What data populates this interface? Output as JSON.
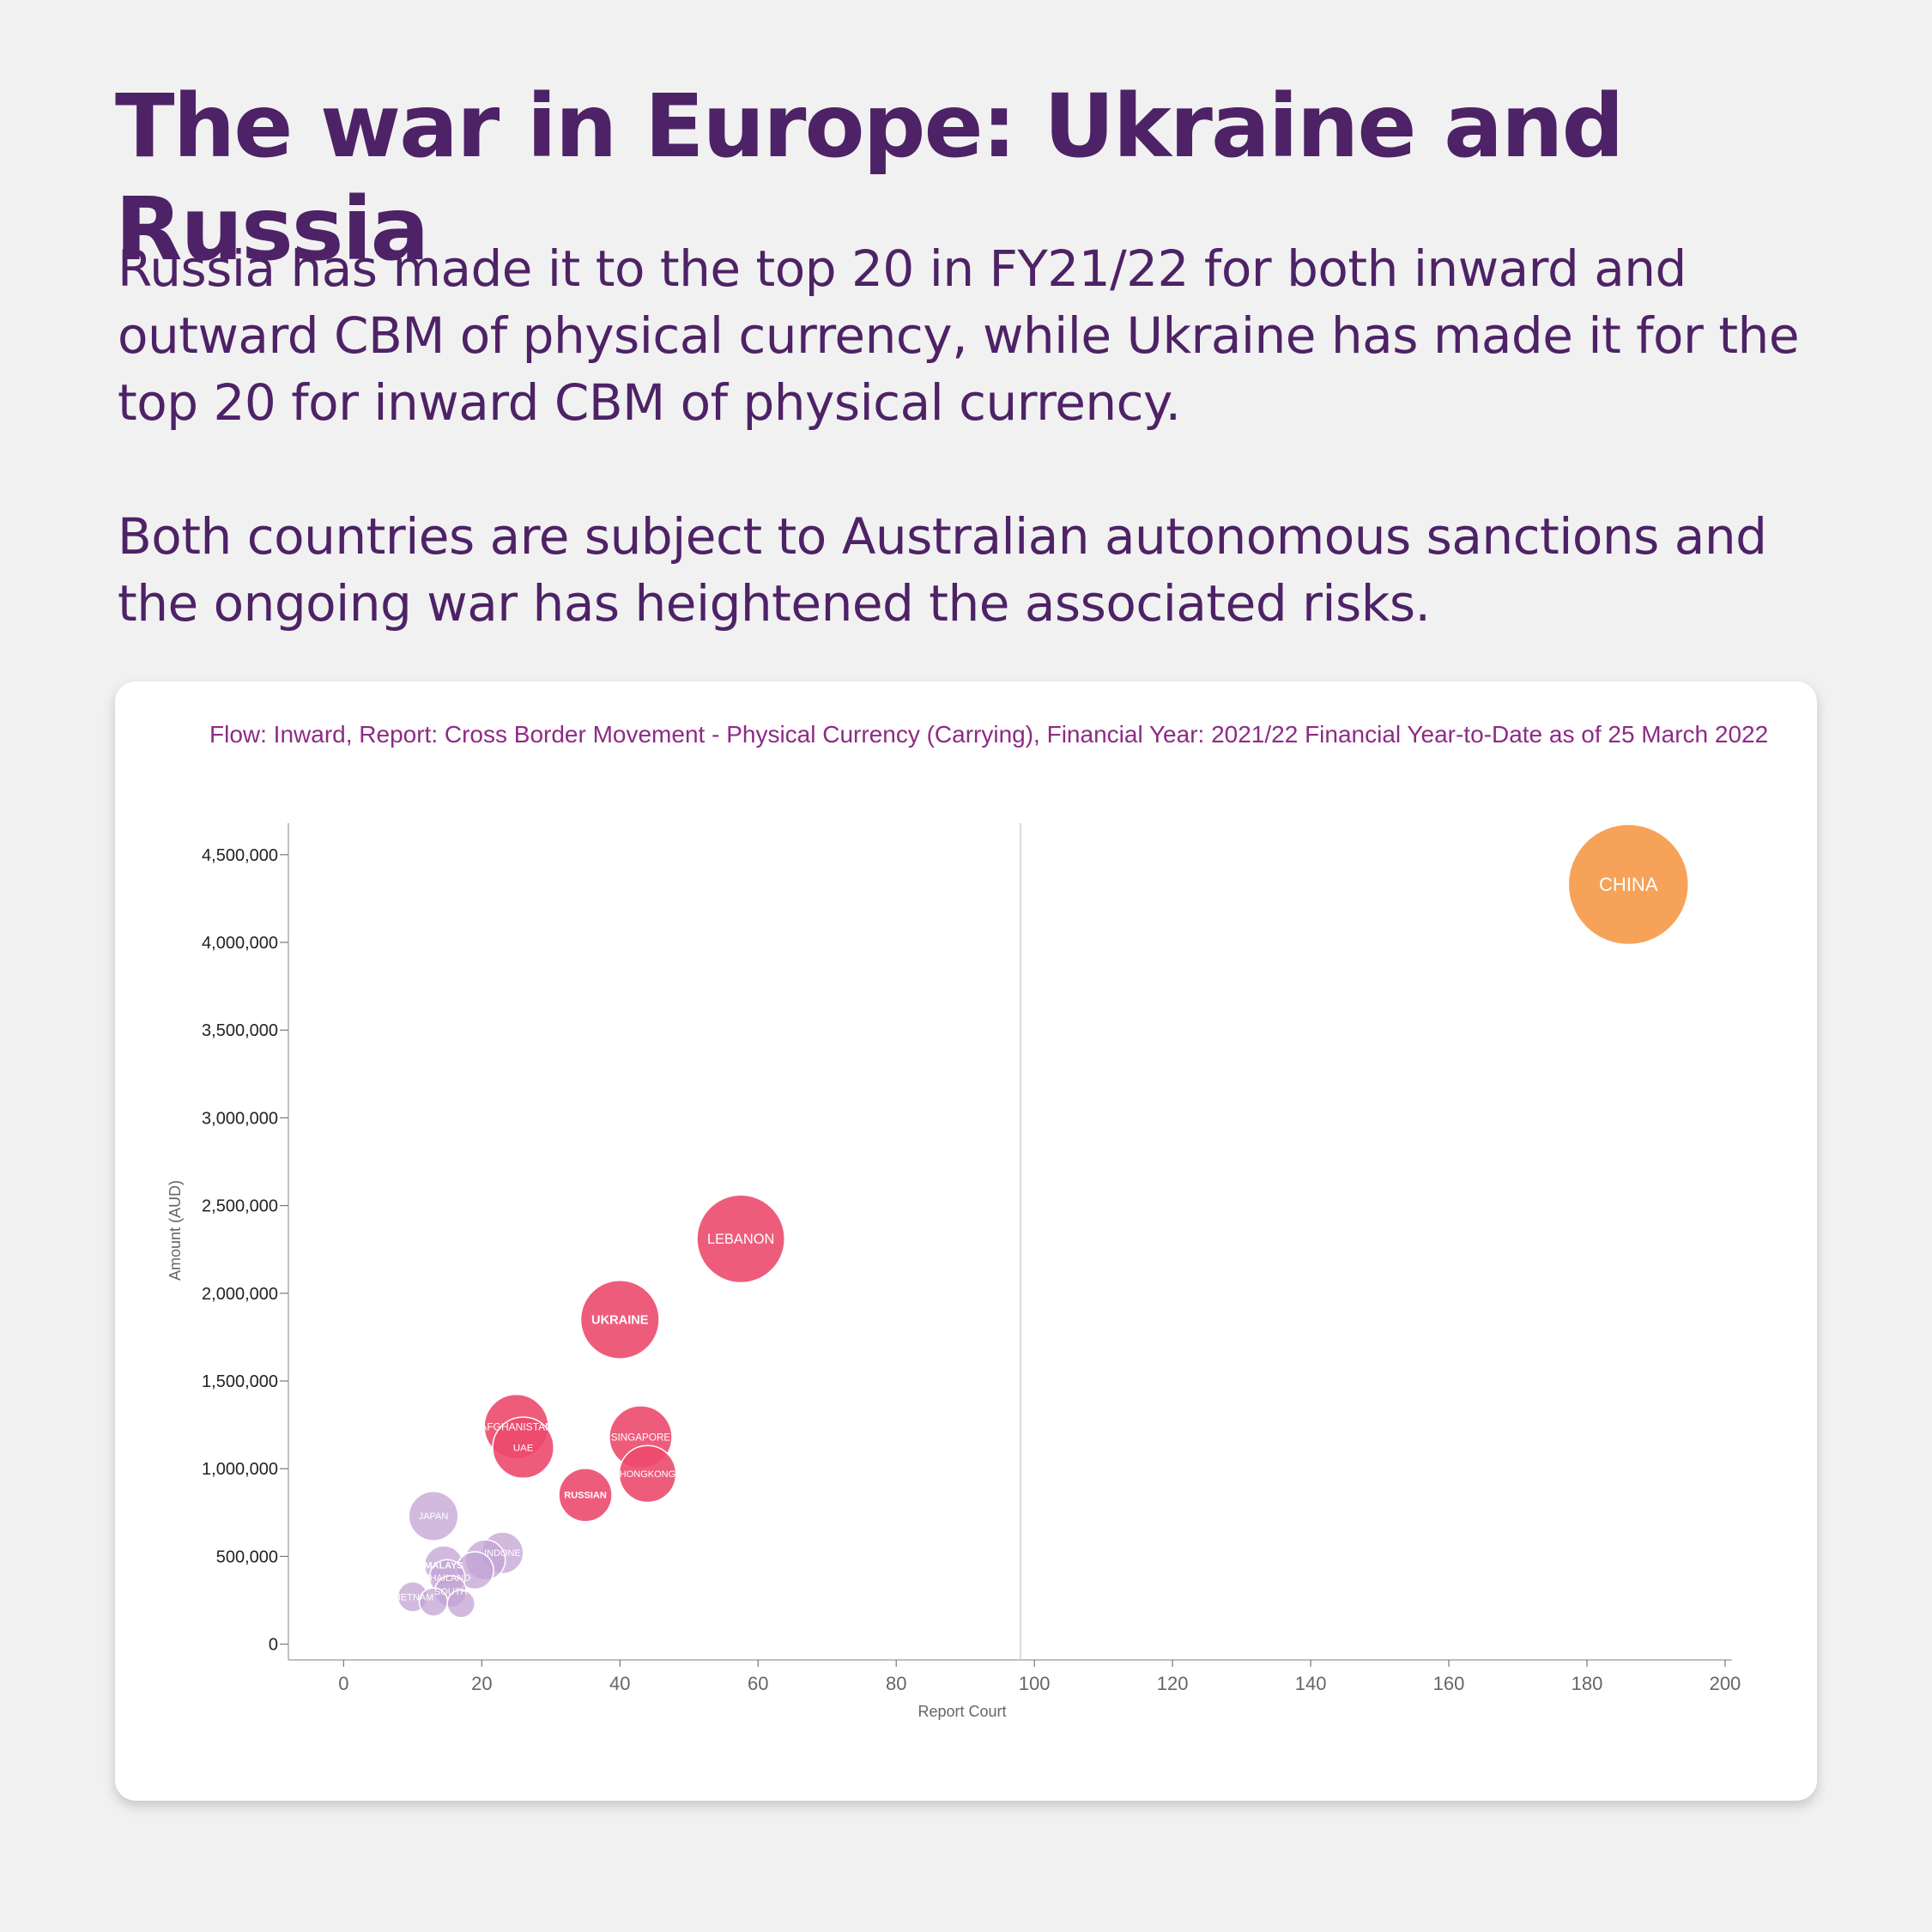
{
  "headline": "The war in Europe: Ukraine and Russia",
  "lede_1": "Russia has made it to the top 20 in FY21/22 for both inward and outward CBM of physical currency, while Ukraine has made it for the top 20 for inward CBM of physical currency.",
  "lede_2": "Both countries are subject to Australian autonomous sanctions and the ongoing war has heightened the associated risks.",
  "colors": {
    "headline": "#4e2266",
    "subtitle": "#8e2a86",
    "pink": "#ec4a6e",
    "purple": "#c3a3d4",
    "orange": "#f59847"
  },
  "chart_data": {
    "type": "scatter",
    "subtitle": "Flow: Inward, Report: Cross Border Movement - Physical Currency (Carrying), Financial Year: 2021/22 Financial Year-to-Date as of 25 March 2022",
    "xlabel": "Report Court",
    "ylabel": "Amount (AUD)",
    "xlim": [
      -8,
      201
    ],
    "ylim": [
      -90000,
      4680000
    ],
    "xticks": [
      0,
      20,
      40,
      60,
      80,
      100,
      120,
      140,
      160,
      180,
      200
    ],
    "yticks": [
      0,
      500000,
      1000000,
      1500000,
      2000000,
      2500000,
      3000000,
      3500000,
      4000000,
      4500000
    ],
    "xtick_labels": [
      "0",
      "20",
      "40",
      "60",
      "80",
      "100",
      "120",
      "140",
      "160",
      "180",
      "200"
    ],
    "ytick_labels": [
      "0",
      "500,000",
      "1,000,000",
      "1,500,000",
      "2,000,000",
      "2,500,000",
      "3,000,000",
      "3,500,000",
      "4,000,000",
      "4,500,000"
    ],
    "reference_line_x": 98,
    "grid": false,
    "points": [
      {
        "label": "CHINA",
        "x": 186,
        "y": 4330000,
        "size": 4330000,
        "color": "orange",
        "bold": false
      },
      {
        "label": "LEBANON",
        "x": 57.5,
        "y": 2310000,
        "size": 2310000,
        "color": "pink",
        "bold": false
      },
      {
        "label": "UKRAINE",
        "x": 40,
        "y": 1850000,
        "size": 1850000,
        "color": "pink",
        "bold": true
      },
      {
        "label": "AFGHANISTAN",
        "x": 25,
        "y": 1240000,
        "size": 1240000,
        "color": "pink",
        "bold": false
      },
      {
        "label": "UAE",
        "x": 26,
        "y": 1120000,
        "size": 1120000,
        "color": "pink",
        "bold": false
      },
      {
        "label": "SINGAPORE",
        "x": 43,
        "y": 1180000,
        "size": 1180000,
        "color": "pink",
        "bold": false
      },
      {
        "label": "HONGKONG",
        "x": 44,
        "y": 970000,
        "size": 970000,
        "color": "pink",
        "bold": false
      },
      {
        "label": "RUSSIAN",
        "x": 35,
        "y": 850000,
        "size": 850000,
        "color": "pink",
        "bold": true
      },
      {
        "label": "JAPAN",
        "x": 13,
        "y": 730000,
        "size": 730000,
        "color": "purple",
        "bold": false
      },
      {
        "label": "INDONE",
        "x": 23,
        "y": 520000,
        "size": 520000,
        "color": "purple",
        "bold": false
      },
      {
        "label": "",
        "x": 20.5,
        "y": 480000,
        "size": 480000,
        "color": "purple",
        "bold": false
      },
      {
        "label": "",
        "x": 19,
        "y": 420000,
        "size": 420000,
        "color": "purple",
        "bold": false
      },
      {
        "label": "MALAYS",
        "x": 14.5,
        "y": 450000,
        "size": 450000,
        "color": "purple",
        "bold": true
      },
      {
        "label": "THAILAND",
        "x": 15,
        "y": 380000,
        "size": 380000,
        "color": "purple",
        "bold": false
      },
      {
        "label": "SOUTH",
        "x": 15.5,
        "y": 300000,
        "size": 300000,
        "color": "purple",
        "bold": false
      },
      {
        "label": "VIETNAM",
        "x": 10,
        "y": 270000,
        "size": 270000,
        "color": "purple",
        "bold": false
      },
      {
        "label": "",
        "x": 13,
        "y": 240000,
        "size": 240000,
        "color": "purple",
        "bold": false
      },
      {
        "label": "",
        "x": 17,
        "y": 230000,
        "size": 230000,
        "color": "purple",
        "bold": false
      }
    ]
  }
}
